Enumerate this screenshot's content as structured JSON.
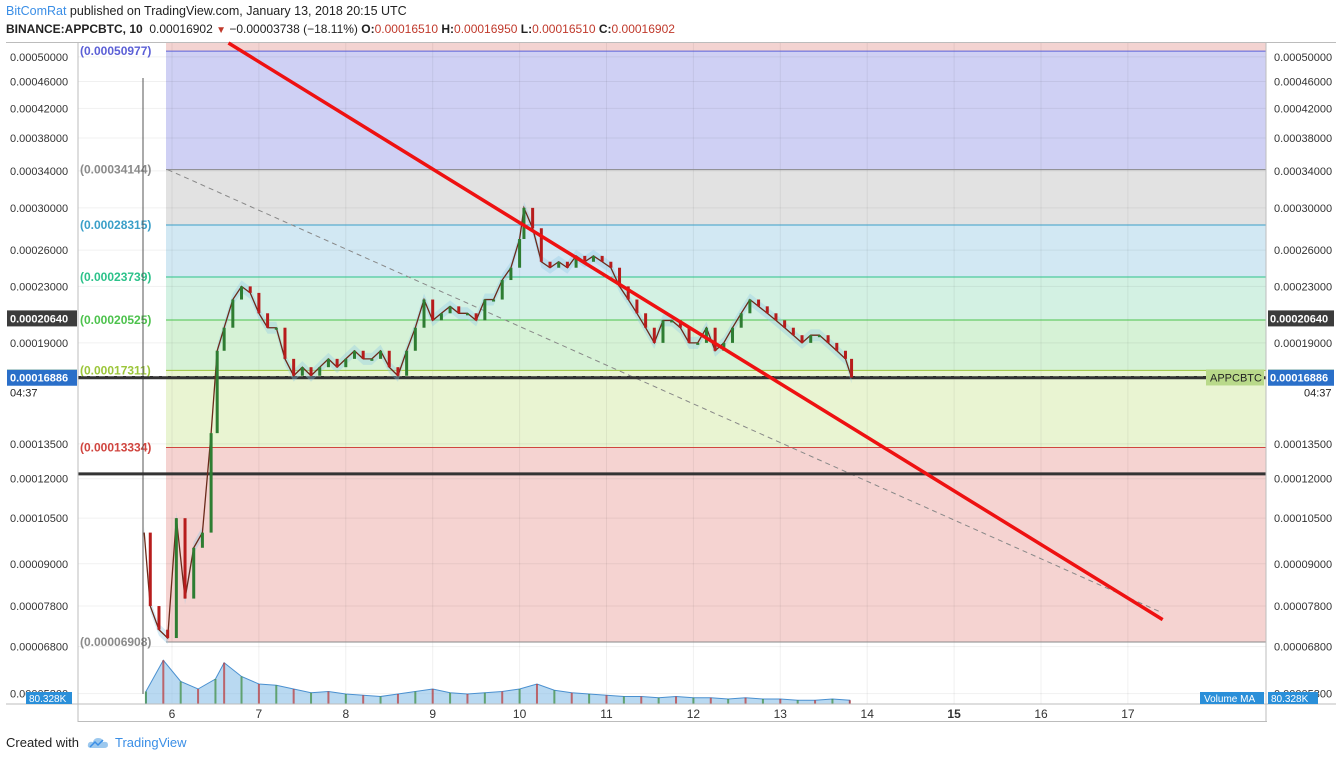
{
  "header": {
    "author": "BitComRat",
    "published_text": "published on TradingView.com, January 13, 2018 20:15 UTC",
    "symbol": "BINANCE:APPCBTC, 10",
    "last": "0.00016902",
    "change": "−0.00003738 (−18.11%)",
    "o_label": "O:",
    "o": "0.00016510",
    "h_label": "H:",
    "h": "0.00016950",
    "l_label": "L:",
    "l": "0.00016510",
    "c_label": "C:",
    "c": "0.00016902"
  },
  "footer": {
    "created_with": "Created with",
    "brand": "TradingView"
  },
  "chart_data": {
    "type": "line",
    "title": "BINANCE:APPCBTC, 10",
    "x_ticks": [
      "6",
      "7",
      "8",
      "9",
      "10",
      "11",
      "12",
      "13",
      "14",
      "15",
      "16",
      "17"
    ],
    "x_tick_values": [
      6,
      7,
      8,
      9,
      10,
      11,
      12,
      13,
      14,
      15,
      16,
      17
    ],
    "x_bold_ticks": [
      "15"
    ],
    "ylim": [
      5.6e-05,
      0.000524
    ],
    "y_scale": "log",
    "y_ticks": [
      "0.00050000",
      "0.00046000",
      "0.00042000",
      "0.00038000",
      "0.00034000",
      "0.00030000",
      "0.00026000",
      "0.00023000",
      "0.00019000",
      "0.00013500",
      "0.00012000",
      "0.00010500",
      "0.00009000",
      "0.00007800",
      "0.00006800",
      "0.00005800"
    ],
    "y_tick_values": [
      0.0005,
      0.00046,
      0.00042,
      0.00038,
      0.00034,
      0.0003,
      0.00026,
      0.00023,
      0.00019,
      0.000135,
      0.00012,
      0.000105,
      9e-05,
      7.8e-05,
      6.8e-05,
      5.8e-05
    ],
    "price_badges": [
      {
        "text": "0.00020640",
        "value": 0.0002064,
        "color": "#3c3c3c"
      },
      {
        "text": "0.00016902",
        "value": 0.00016902,
        "color": "#b9d98a"
      },
      {
        "text": "0.00016886",
        "value": 0.00016886,
        "color": "#2a6fc9"
      }
    ],
    "countdown": "04:37",
    "series_label": "APPCBTC",
    "volume_label": "Volume MA",
    "volume_value": "80.328K",
    "fib_levels": [
      {
        "label": "(0.00050977)",
        "value": 0.00050977,
        "color": "#5b5fd6",
        "fill": "#cfd0f4"
      },
      {
        "label": "(0.00034144)",
        "value": 0.00034144,
        "color": "#8a8a8a",
        "fill": "#e2e2e2"
      },
      {
        "label": "(0.00028315)",
        "value": 0.00028315,
        "color": "#3a9fc8",
        "fill": "#d2e8f3"
      },
      {
        "label": "(0.00023739)",
        "value": 0.00023739,
        "color": "#2cc28a",
        "fill": "#d3f1e3"
      },
      {
        "label": "(0.00020525)",
        "value": 0.00020525,
        "color": "#4cc24c",
        "fill": "#d6f2d6"
      },
      {
        "label": "(0.00017311)",
        "value": 0.00017311,
        "color": "#9cc63a",
        "fill": "#e9f4d2"
      },
      {
        "label": "(0.00013334)",
        "value": 0.00013334,
        "color": "#d0453f",
        "fill": "#f5d3d1"
      },
      {
        "label": "(0.00006908)",
        "value": 6.908e-05,
        "color": "#8a8a8a",
        "fill": "#f5d3d1"
      }
    ],
    "horizontal_lines": [
      {
        "value": 0.00016902,
        "style": "dotted",
        "color": "#222222"
      },
      {
        "value": 0.00016886,
        "style": "solid",
        "color": "#333333"
      },
      {
        "value": 0.000122,
        "style": "solid",
        "color": "#333333"
      }
    ],
    "trendline": {
      "color": "#ee1111",
      "x": [
        6.65,
        17.4
      ],
      "y": [
        0.000524,
        7.45e-05
      ]
    },
    "dashed_line": {
      "color": "#888888",
      "x": [
        5.95,
        17.4
      ],
      "y": [
        0.00034144,
        7.62e-05
      ]
    },
    "price_series": {
      "x": [
        5.68,
        5.75,
        5.85,
        5.95,
        6.05,
        6.15,
        6.25,
        6.35,
        6.45,
        6.52,
        6.6,
        6.7,
        6.8,
        6.9,
        7.0,
        7.1,
        7.2,
        7.3,
        7.4,
        7.5,
        7.6,
        7.7,
        7.8,
        7.9,
        8.0,
        8.1,
        8.2,
        8.3,
        8.4,
        8.5,
        8.6,
        8.7,
        8.8,
        8.9,
        9.0,
        9.1,
        9.2,
        9.3,
        9.4,
        9.5,
        9.6,
        9.7,
        9.8,
        9.9,
        10.0,
        10.05,
        10.15,
        10.25,
        10.35,
        10.45,
        10.55,
        10.65,
        10.75,
        10.85,
        10.95,
        11.05,
        11.15,
        11.25,
        11.35,
        11.45,
        11.55,
        11.65,
        11.75,
        11.85,
        11.95,
        12.05,
        12.15,
        12.25,
        12.35,
        12.45,
        12.55,
        12.65,
        12.75,
        12.85,
        12.95,
        13.05,
        13.15,
        13.25,
        13.35,
        13.45,
        13.55,
        13.65,
        13.75,
        13.82
      ],
      "y": [
        0.0001,
        7.8e-05,
        7.2e-05,
        7e-05,
        0.000105,
        8e-05,
        9.5e-05,
        0.0001,
        0.00014,
        0.000185,
        0.0002,
        0.00022,
        0.00023,
        0.000225,
        0.00021,
        0.0002,
        0.0002,
        0.00018,
        0.00017,
        0.000175,
        0.00017,
        0.000175,
        0.00018,
        0.000175,
        0.00018,
        0.000185,
        0.00018,
        0.00018,
        0.000185,
        0.000175,
        0.00017,
        0.000185,
        0.0002,
        0.00022,
        0.000205,
        0.00021,
        0.000215,
        0.00021,
        0.00021,
        0.000205,
        0.00022,
        0.00022,
        0.000235,
        0.000245,
        0.00027,
        0.0003,
        0.00028,
        0.00025,
        0.000245,
        0.00025,
        0.000245,
        0.000255,
        0.00025,
        0.000255,
        0.00025,
        0.000245,
        0.00023,
        0.00022,
        0.00021,
        0.0002,
        0.00019,
        0.000205,
        0.000205,
        0.0002,
        0.00019,
        0.00019,
        0.0002,
        0.000185,
        0.00019,
        0.0002,
        0.00021,
        0.00022,
        0.000215,
        0.00021,
        0.000205,
        0.0002,
        0.000195,
        0.00019,
        0.000195,
        0.000195,
        0.00019,
        0.000185,
        0.00018,
        0.000169
      ]
    },
    "volume_series": {
      "x": [
        5.7,
        5.9,
        6.1,
        6.3,
        6.5,
        6.6,
        6.8,
        7.0,
        7.2,
        7.4,
        7.6,
        7.8,
        8.0,
        8.2,
        8.4,
        8.6,
        8.8,
        9.0,
        9.2,
        9.4,
        9.6,
        9.8,
        10.0,
        10.2,
        10.4,
        10.6,
        10.8,
        11.0,
        11.2,
        11.4,
        11.6,
        11.8,
        12.0,
        12.2,
        12.4,
        12.6,
        12.8,
        13.0,
        13.2,
        13.4,
        13.6,
        13.8
      ],
      "y": [
        10,
        35,
        18,
        12,
        20,
        33,
        22,
        16,
        15,
        12,
        9,
        10,
        8,
        7,
        6,
        8,
        10,
        12,
        9,
        8,
        9,
        10,
        12,
        16,
        11,
        9,
        8,
        7,
        6,
        6,
        5,
        6,
        5,
        5,
        4,
        5,
        4,
        4,
        3,
        3,
        4,
        3
      ]
    }
  }
}
